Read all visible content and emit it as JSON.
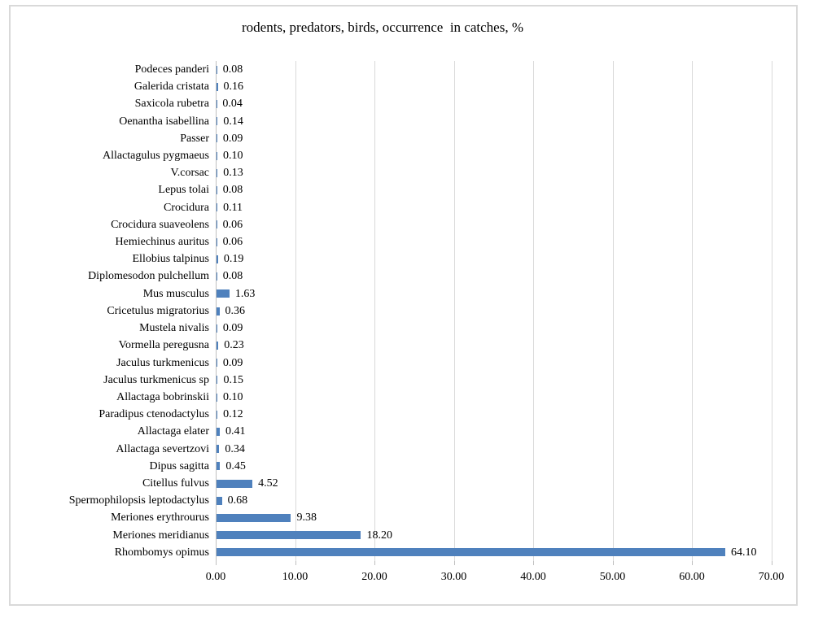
{
  "chart_data": {
    "type": "bar",
    "orientation": "horizontal",
    "title": "rodents, predators, birds, occurrence  in catches, %",
    "categories": [
      "Podeces panderi",
      "Galerida cristata",
      "Saxicola rubetra",
      "Oenantha isabellina",
      "Passer",
      "Allactagulus pygmaeus",
      "V.corsac",
      "Lepus tolai",
      "Crocidura",
      "Crocidura suaveolens",
      "Hemiechinus auritus",
      "Ellobius talpinus",
      "Diplomesodon pulchellum",
      "Mus musculus",
      "Cricetulus migratorius",
      "Mustela nivalis",
      "Vormella peregusna",
      "Jaculus turkmenicus",
      "Jaculus turkmenicus sp",
      "Allactaga bobrinskii",
      "Paradipus ctenodactylus",
      "Allactaga elater",
      "Allactaga severtzovi",
      "Dipus sagitta",
      "Citellus fulvus",
      "Spermophilopsis leptodactylus",
      "Meriones erythrourus",
      "Meriones meridianus",
      "Rhombomys opimus"
    ],
    "values": [
      0.08,
      0.16,
      0.04,
      0.14,
      0.09,
      0.1,
      0.13,
      0.08,
      0.11,
      0.06,
      0.06,
      0.19,
      0.08,
      1.63,
      0.36,
      0.09,
      0.23,
      0.09,
      0.15,
      0.1,
      0.12,
      0.41,
      0.34,
      0.45,
      4.52,
      0.68,
      9.38,
      18.2,
      64.1
    ],
    "value_labels": [
      "0.08",
      "0.16",
      "0.04",
      "0.14",
      "0.09",
      "0.10",
      "0.13",
      "0.08",
      "0.11",
      "0.06",
      "0.06",
      "0.19",
      "0.08",
      "1.63",
      "0.36",
      "0.09",
      "0.23",
      "0.09",
      "0.15",
      "0.10",
      "0.12",
      "0.41",
      "0.34",
      "0.45",
      "4.52",
      "0.68",
      "9.38",
      "18.20",
      "64.10"
    ],
    "x_ticks": [
      "0.00",
      "10.00",
      "20.00",
      "30.00",
      "40.00",
      "50.00",
      "60.00",
      "70.00"
    ],
    "xlim": [
      0,
      70
    ],
    "xlabel": "",
    "ylabel": "",
    "grid": "vertical",
    "legend": "none",
    "colors": {
      "bar": "#4f81bd",
      "gridline": "#d9d9d9",
      "axis_line": "#bfbfbf",
      "text": "#000000",
      "frame_border": "#d9d9d9",
      "background": "#ffffff"
    }
  }
}
